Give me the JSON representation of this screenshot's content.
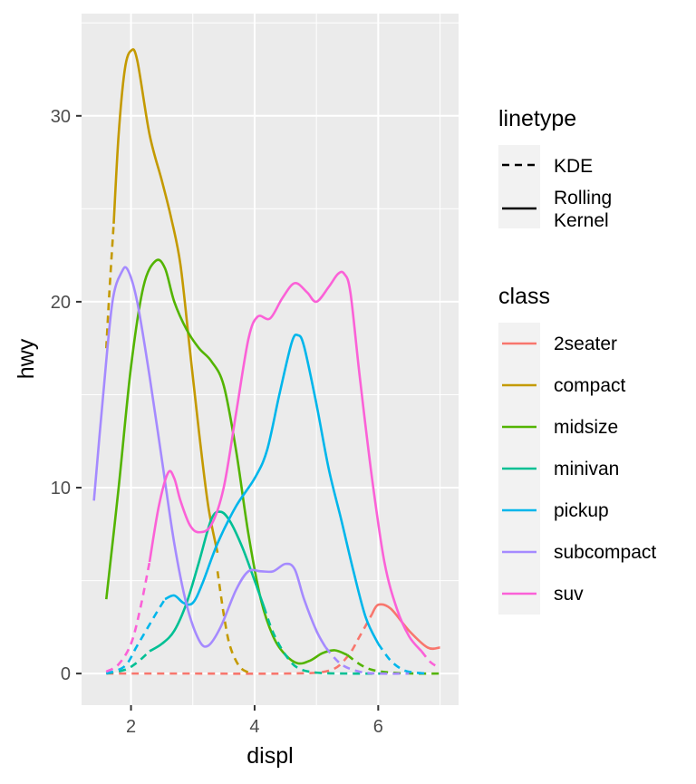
{
  "chart_data": {
    "type": "line",
    "xlabel": "displ",
    "ylabel": "hwy",
    "xlim": [
      1.2,
      7.3
    ],
    "ylim": [
      -1.7,
      35.5
    ],
    "x_ticks": [
      2,
      4,
      6
    ],
    "y_ticks": [
      0,
      10,
      20,
      30
    ],
    "grid": true,
    "legend_position": "right",
    "linetype_legend": {
      "title": "linetype",
      "entries": [
        {
          "label": "KDE",
          "dash": "dashed"
        },
        {
          "label": "Rolling Kernel",
          "label_lines": [
            "Rolling",
            "Kernel"
          ],
          "dash": "solid"
        }
      ]
    },
    "class_legend": {
      "title": "class",
      "entries": [
        "2seater",
        "compact",
        "midsize",
        "minivan",
        "pickup",
        "subcompact",
        "suv"
      ]
    },
    "series": [
      {
        "name": "2seater",
        "color": "#F8766D",
        "kde": [
          [
            1.6,
            0
          ],
          [
            3,
            0
          ],
          [
            4.5,
            0
          ],
          [
            5.2,
            0.15
          ],
          [
            5.5,
            0.9
          ],
          [
            5.7,
            2.0
          ],
          [
            5.9,
            3.2
          ]
        ],
        "rolling": [
          [
            5.9,
            3.2
          ],
          [
            6.0,
            3.7
          ],
          [
            6.2,
            3.5
          ],
          [
            6.5,
            2.3
          ],
          [
            6.8,
            1.4
          ],
          [
            7.0,
            1.4
          ]
        ]
      },
      {
        "name": "compact",
        "color": "#C49A00",
        "kde": [
          [
            1.6,
            17.5
          ],
          [
            1.65,
            20.5
          ],
          [
            1.72,
            24.2
          ]
        ],
        "kde_tail": [
          [
            3.4,
            5.5
          ],
          [
            3.5,
            3.2
          ],
          [
            3.6,
            1.5
          ],
          [
            3.75,
            0.4
          ],
          [
            3.9,
            0.05
          ]
        ],
        "rolling": [
          [
            1.72,
            24.2
          ],
          [
            1.8,
            29
          ],
          [
            1.9,
            32.5
          ],
          [
            2.0,
            33.5
          ],
          [
            2.1,
            33
          ],
          [
            2.3,
            29
          ],
          [
            2.5,
            26.5
          ],
          [
            2.65,
            24.5
          ],
          [
            2.8,
            22
          ],
          [
            2.95,
            17.5
          ],
          [
            3.1,
            13
          ],
          [
            3.25,
            9
          ],
          [
            3.4,
            6.5
          ]
        ]
      },
      {
        "name": "midsize",
        "color": "#53B400",
        "rolling": [
          [
            1.6,
            4
          ],
          [
            1.8,
            10
          ],
          [
            2.0,
            16.5
          ],
          [
            2.2,
            20.8
          ],
          [
            2.4,
            22.2
          ],
          [
            2.55,
            21.8
          ],
          [
            2.7,
            20
          ],
          [
            2.9,
            18.5
          ],
          [
            3.1,
            17.5
          ],
          [
            3.3,
            16.8
          ],
          [
            3.5,
            15.5
          ],
          [
            3.7,
            12
          ],
          [
            3.9,
            7.5
          ],
          [
            4.1,
            4
          ],
          [
            4.3,
            2
          ],
          [
            4.5,
            1
          ],
          [
            4.7,
            0.55
          ],
          [
            4.9,
            0.7
          ],
          [
            5.1,
            1.1
          ],
          [
            5.3,
            1.25
          ],
          [
            5.5,
            1
          ]
        ],
        "kde": [
          [
            5.5,
            1
          ],
          [
            5.7,
            0.5
          ],
          [
            5.9,
            0.2
          ],
          [
            6.2,
            0.05
          ],
          [
            6.6,
            0
          ],
          [
            7.0,
            0
          ]
        ]
      },
      {
        "name": "minivan",
        "color": "#00C094",
        "kde": [
          [
            1.6,
            0
          ],
          [
            1.9,
            0.2
          ],
          [
            2.1,
            0.6
          ],
          [
            2.3,
            1.2
          ]
        ],
        "rolling": [
          [
            2.3,
            1.2
          ],
          [
            2.5,
            1.6
          ],
          [
            2.7,
            2.3
          ],
          [
            2.9,
            3.8
          ],
          [
            3.1,
            6
          ],
          [
            3.3,
            8.3
          ],
          [
            3.45,
            8.7
          ],
          [
            3.6,
            8.2
          ],
          [
            3.8,
            6.8
          ],
          [
            4.0,
            5
          ],
          [
            4.15,
            3.6
          ]
        ],
        "kde_tail": [
          [
            4.15,
            3.6
          ],
          [
            4.3,
            2.2
          ],
          [
            4.5,
            1
          ],
          [
            4.7,
            0.3
          ],
          [
            5.0,
            0.05
          ],
          [
            5.5,
            0
          ],
          [
            6.2,
            0
          ]
        ]
      },
      {
        "name": "pickup",
        "color": "#00B6EB",
        "kde": [
          [
            1.6,
            0
          ],
          [
            1.9,
            0.4
          ],
          [
            2.1,
            1.5
          ],
          [
            2.4,
            3.2
          ],
          [
            2.55,
            4
          ]
        ],
        "rolling": [
          [
            2.55,
            4
          ],
          [
            2.7,
            4.2
          ],
          [
            2.85,
            3.8
          ],
          [
            3.0,
            3.8
          ],
          [
            3.15,
            4.8
          ],
          [
            3.4,
            7
          ],
          [
            3.7,
            9
          ],
          [
            4.0,
            10.5
          ],
          [
            4.2,
            12
          ],
          [
            4.4,
            15
          ],
          [
            4.6,
            17.8
          ],
          [
            4.7,
            18.2
          ],
          [
            4.8,
            17.6
          ],
          [
            5.0,
            14.5
          ],
          [
            5.2,
            11
          ],
          [
            5.4,
            8.3
          ],
          [
            5.6,
            5.5
          ],
          [
            5.8,
            3
          ],
          [
            6.0,
            1.6
          ]
        ],
        "kde_tail": [
          [
            6.0,
            1.6
          ],
          [
            6.2,
            0.7
          ],
          [
            6.4,
            0.2
          ],
          [
            6.6,
            0.05
          ],
          [
            6.8,
            0
          ]
        ]
      },
      {
        "name": "subcompact",
        "color": "#A58AFF",
        "rolling": [
          [
            1.4,
            9.3
          ],
          [
            1.55,
            15
          ],
          [
            1.7,
            20
          ],
          [
            1.85,
            21.6
          ],
          [
            1.95,
            21.7
          ],
          [
            2.1,
            20
          ],
          [
            2.3,
            16
          ],
          [
            2.5,
            11.5
          ],
          [
            2.7,
            7
          ],
          [
            2.9,
            3.7
          ],
          [
            3.1,
            1.8
          ],
          [
            3.25,
            1.5
          ],
          [
            3.45,
            2.5
          ],
          [
            3.7,
            4.5
          ],
          [
            3.9,
            5.5
          ],
          [
            4.1,
            5.5
          ],
          [
            4.3,
            5.5
          ],
          [
            4.5,
            5.9
          ],
          [
            4.65,
            5.6
          ],
          [
            4.8,
            4
          ],
          [
            5.0,
            2.3
          ],
          [
            5.15,
            1.4
          ]
        ],
        "kde": [
          [
            5.15,
            1.4
          ],
          [
            5.4,
            0.5
          ],
          [
            5.7,
            0.1
          ],
          [
            6.0,
            0
          ],
          [
            6.5,
            0
          ]
        ]
      },
      {
        "name": "suv",
        "color": "#FB61D7",
        "kde": [
          [
            1.6,
            0.1
          ],
          [
            1.8,
            0.5
          ],
          [
            2.0,
            1.6
          ],
          [
            2.15,
            3.5
          ],
          [
            2.3,
            6
          ]
        ],
        "rolling": [
          [
            2.3,
            6
          ],
          [
            2.45,
            9
          ],
          [
            2.6,
            10.8
          ],
          [
            2.7,
            10.5
          ],
          [
            2.8,
            9.3
          ],
          [
            2.95,
            8
          ],
          [
            3.1,
            7.6
          ],
          [
            3.3,
            8
          ],
          [
            3.5,
            10
          ],
          [
            3.7,
            14
          ],
          [
            3.9,
            18
          ],
          [
            4.05,
            19.2
          ],
          [
            4.25,
            19.1
          ],
          [
            4.45,
            20.2
          ],
          [
            4.65,
            21
          ],
          [
            4.85,
            20.5
          ],
          [
            5.0,
            20
          ],
          [
            5.2,
            20.8
          ],
          [
            5.35,
            21.5
          ],
          [
            5.45,
            21.5
          ],
          [
            5.55,
            20.5
          ],
          [
            5.7,
            16
          ],
          [
            5.9,
            10.5
          ],
          [
            6.1,
            6
          ],
          [
            6.3,
            3.5
          ],
          [
            6.5,
            2
          ],
          [
            6.7,
            1.2
          ]
        ],
        "kde_tail": [
          [
            6.7,
            1.2
          ],
          [
            6.85,
            0.6
          ],
          [
            7.0,
            0.3
          ]
        ]
      }
    ]
  }
}
